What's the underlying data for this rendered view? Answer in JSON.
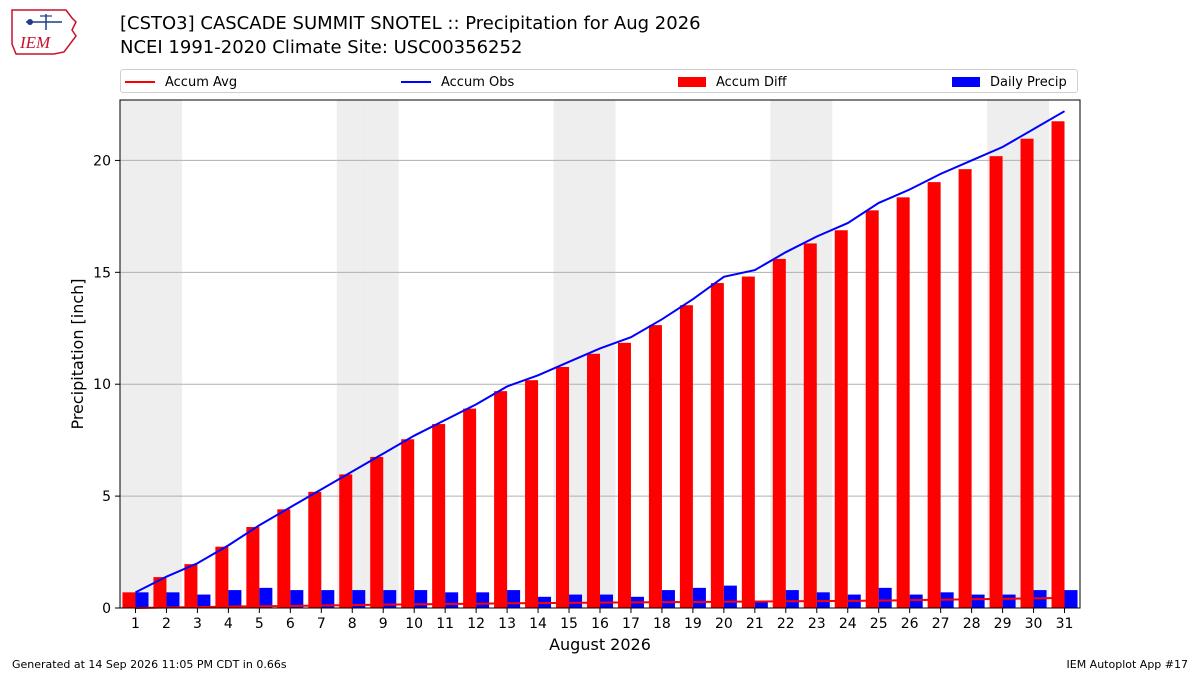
{
  "header": {
    "logo_text": "IEM",
    "title": "[CSTO3] CASCADE SUMMIT SNOTEL :: Precipitation for Aug 2026",
    "subtitle": "NCEI 1991-2020 Climate Site: USC00356252"
  },
  "footer": {
    "generated": "Generated at 14 Sep 2026 11:05 PM CDT in 0.66s",
    "app": "IEM Autoplot App #17"
  },
  "colors": {
    "accum_avg": "#ff0000",
    "accum_obs": "#0000ff",
    "accum_diff": "#ff0000",
    "daily_precip": "#0000ff",
    "weekend_shade": "#eeeeee",
    "grid": "#b0b0b0"
  },
  "chart_data": {
    "type": "bar",
    "xlabel": "August 2026",
    "ylabel": "Precipitation [inch]",
    "ylim": [
      0,
      22.7
    ],
    "yticks": [
      0,
      5,
      10,
      15,
      20
    ],
    "categories": [
      "1",
      "2",
      "3",
      "4",
      "5",
      "6",
      "7",
      "8",
      "9",
      "10",
      "11",
      "12",
      "13",
      "14",
      "15",
      "16",
      "17",
      "18",
      "19",
      "20",
      "21",
      "22",
      "23",
      "24",
      "25",
      "26",
      "27",
      "28",
      "29",
      "30",
      "31"
    ],
    "shaded_days": [
      1,
      2,
      8,
      9,
      15,
      16,
      22,
      23,
      29,
      30
    ],
    "grid": true,
    "legend_position": "top",
    "series": [
      {
        "name": "Accum Avg",
        "kind": "line",
        "values": [
          0.0,
          0.02,
          0.04,
          0.06,
          0.08,
          0.09,
          0.11,
          0.13,
          0.15,
          0.16,
          0.18,
          0.19,
          0.21,
          0.22,
          0.23,
          0.24,
          0.25,
          0.26,
          0.27,
          0.28,
          0.29,
          0.3,
          0.31,
          0.32,
          0.33,
          0.35,
          0.37,
          0.39,
          0.41,
          0.43,
          0.45
        ]
      },
      {
        "name": "Accum Obs",
        "kind": "line",
        "values": [
          0.7,
          1.4,
          2.0,
          2.8,
          3.7,
          4.5,
          5.3,
          6.1,
          6.9,
          7.7,
          8.4,
          9.1,
          9.9,
          10.4,
          11.0,
          11.6,
          12.1,
          12.9,
          13.8,
          14.8,
          15.1,
          15.9,
          16.6,
          17.2,
          18.1,
          18.7,
          19.4,
          20.0,
          20.6,
          21.4,
          22.2
        ]
      },
      {
        "name": "Accum Diff",
        "kind": "bar",
        "values": [
          0.7,
          1.38,
          1.96,
          2.74,
          3.62,
          4.41,
          5.19,
          5.97,
          6.75,
          7.54,
          8.22,
          8.91,
          9.69,
          10.18,
          10.77,
          11.36,
          11.85,
          12.64,
          13.53,
          14.52,
          14.81,
          15.6,
          16.29,
          16.88,
          17.77,
          18.35,
          19.03,
          19.61,
          20.19,
          20.97,
          21.75
        ]
      },
      {
        "name": "Daily Precip",
        "kind": "bar",
        "values": [
          0.7,
          0.7,
          0.6,
          0.8,
          0.9,
          0.8,
          0.8,
          0.8,
          0.8,
          0.8,
          0.7,
          0.7,
          0.8,
          0.5,
          0.6,
          0.6,
          0.5,
          0.8,
          0.9,
          1.0,
          0.3,
          0.8,
          0.7,
          0.6,
          0.9,
          0.6,
          0.7,
          0.6,
          0.6,
          0.8,
          0.8
        ]
      }
    ]
  }
}
